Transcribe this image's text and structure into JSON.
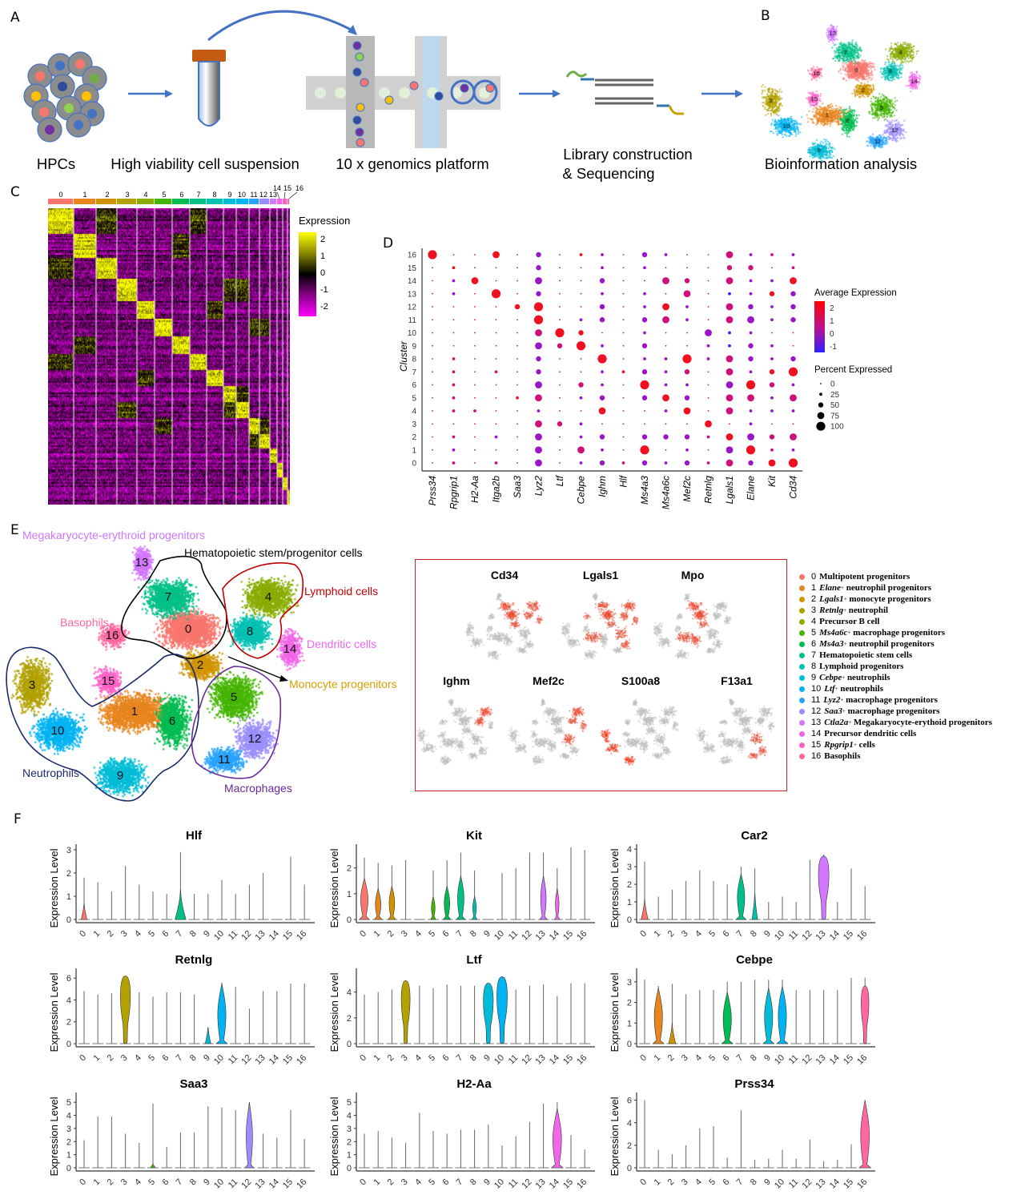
{
  "panel_labels": {
    "A": "A",
    "B": "B",
    "C": "C",
    "D": "D",
    "E": "E",
    "F": "F"
  },
  "panelA": {
    "steps": [
      "HPCs",
      "High viability cell suspension",
      "10 x genomics platform",
      "Library construction",
      "& Sequencing",
      "Bioinformation analysis"
    ]
  },
  "clusters": [
    "0",
    "1",
    "2",
    "3",
    "4",
    "5",
    "6",
    "7",
    "8",
    "9",
    "10",
    "11",
    "12",
    "13",
    "14",
    "15",
    "16"
  ],
  "cluster_colors": [
    "#F8766D",
    "#E7851E",
    "#D09400",
    "#B2A100",
    "#89AC00",
    "#45B500",
    "#00BC51",
    "#00C087",
    "#00C0B2",
    "#00BCD6",
    "#00B3F2",
    "#29A3FF",
    "#9C8DFF",
    "#D277FF",
    "#F166E8",
    "#FF61C7",
    "#FF689E"
  ],
  "heatmap": {
    "legend_title": "Expression",
    "legend_ticks": [
      "2",
      "1",
      "0",
      "-1",
      "-2"
    ],
    "colors": {
      "low": "#FF00FF",
      "mid": "#000000",
      "high": "#FFFF00"
    }
  },
  "dotplot": {
    "ylabel": "Cluster",
    "genes": [
      "Prss34",
      "Rpgrip1",
      "H2-Aa",
      "Itga2b",
      "Saa3",
      "Lyz2",
      "Ltf",
      "Cebpe",
      "Ighm",
      "Hlf",
      "Ms4a3",
      "Ms4a6c",
      "Mef2c",
      "Retnlg",
      "Lgals1",
      "Elane",
      "Kit",
      "Cd34"
    ],
    "rows_top_to_bottom": [
      "16",
      "15",
      "14",
      "13",
      "12",
      "11",
      "10",
      "9",
      "8",
      "7",
      "6",
      "5",
      "4",
      "3",
      "2",
      "1",
      "0"
    ],
    "dots_note": "size class 0-4 (percent expressed) + color class r/m/p/b (average expression high to low)",
    "dots": [
      [
        "4r",
        "0r",
        "0m",
        "3r",
        "0m",
        "2p",
        "0m",
        "1r",
        "1p",
        "0m",
        "2p",
        "1p",
        "0m",
        "0m",
        "3m",
        "1p",
        "1m",
        "1p"
      ],
      [
        "0m",
        "1r",
        "0m",
        "0m",
        "0m",
        "2p",
        "0m",
        "0m",
        "1p",
        "0m",
        "1p",
        "0m",
        "0m",
        "0m",
        "2m",
        "2m",
        "0m",
        "1m"
      ],
      [
        "0m",
        "1p",
        "3r",
        "0m",
        "0m",
        "3p",
        "0m",
        "0m",
        "2p",
        "0m",
        "0m",
        "3m",
        "2m",
        "0m",
        "3m",
        "1p",
        "1p",
        "3r"
      ],
      [
        "0m",
        "1p",
        "0m",
        "4r",
        "0m",
        "2p",
        "0m",
        "0m",
        "1p",
        "0m",
        "1p",
        "0m",
        "3m",
        "0m",
        "1b",
        "1p",
        "2r",
        "2p"
      ],
      [
        "0m",
        "0m",
        "0m",
        "0m",
        "2r",
        "4r",
        "0m",
        "0m",
        "2p",
        "0m",
        "1p",
        "3r",
        "1p",
        "0m",
        "3m",
        "2p",
        "1p",
        "2p"
      ],
      [
        "0m",
        "0m",
        "0m",
        "0m",
        "0m",
        "4r",
        "0m",
        "1p",
        "2p",
        "0m",
        "2p",
        "3m",
        "1p",
        "0m",
        "3m",
        "3p",
        "1p",
        "2p"
      ],
      [
        "0m",
        "0m",
        "0m",
        "0m",
        "0m",
        "3m",
        "4r",
        "2r",
        "0m",
        "0m",
        "1p",
        "0m",
        "0m",
        "3p",
        "1b",
        "1p",
        "0m",
        "0m"
      ],
      [
        "0m",
        "0m",
        "0m",
        "0m",
        "0m",
        "3p",
        "2m",
        "4r",
        "1p",
        "0m",
        "2p",
        "0m",
        "0m",
        "1p",
        "1b",
        "2p",
        "1p",
        "0m"
      ],
      [
        "0m",
        "1m",
        "0m",
        "0m",
        "0m",
        "2p",
        "0m",
        "0m",
        "4r",
        "0m",
        "1p",
        "1p",
        "4r",
        "1p",
        "3m",
        "2p",
        "1p",
        "2p"
      ],
      [
        "0m",
        "1m",
        "0m",
        "1m",
        "0m",
        "2p",
        "0m",
        "0m",
        "1p",
        "1r",
        "2p",
        "1p",
        "2m",
        "0m",
        "3m",
        "1p",
        "2r",
        "4r"
      ],
      [
        "0m",
        "1m",
        "0m",
        "0m",
        "0m",
        "3p",
        "0m",
        "2m",
        "1p",
        "0m",
        "4r",
        "1p",
        "1p",
        "0m",
        "3p",
        "4r",
        "2m",
        "1p"
      ],
      [
        "0m",
        "1m",
        "0m",
        "0m",
        "1r",
        "3m",
        "0m",
        "1p",
        "2p",
        "0m",
        "2p",
        "3r",
        "2p",
        "0m",
        "3m",
        "3m",
        "1p",
        "3m"
      ],
      [
        "0m",
        "1m",
        "1m",
        "0m",
        "0m",
        "1p",
        "0m",
        "0m",
        "3r",
        "0m",
        "0m",
        "1p",
        "3r",
        "0m",
        "3m",
        "1p",
        "1p",
        "1p"
      ],
      [
        "0m",
        "0m",
        "0m",
        "0m",
        "0m",
        "3m",
        "2m",
        "1p",
        "0m",
        "0m",
        "0m",
        "0m",
        "0m",
        "3r",
        "0m",
        "1p",
        "0m",
        "0m"
      ],
      [
        "0m",
        "1m",
        "0m",
        "1p",
        "0m",
        "3p",
        "0m",
        "1p",
        "2p",
        "0m",
        "2p",
        "2p",
        "2p",
        "1m",
        "3r",
        "3p",
        "2m",
        "3m"
      ],
      [
        "0m",
        "1p",
        "0m",
        "0m",
        "0m",
        "3p",
        "0m",
        "3m",
        "1p",
        "0m",
        "4r",
        "0m",
        "1p",
        "0m",
        "3p",
        "4r",
        "1m",
        "1p"
      ],
      [
        "0m",
        "1m",
        "0m",
        "1m",
        "0m",
        "3p",
        "0m",
        "1p",
        "2p",
        "1m",
        "2p",
        "1p",
        "2p",
        "1m",
        "3m",
        "2p",
        "3r",
        "4r"
      ]
    ],
    "color_classes": {
      "r": "#F01020",
      "m": "#D0107A",
      "p": "#9A14C8",
      "b": "#3020FF"
    },
    "avg_legend": {
      "title": "Average Expression",
      "ticks": [
        "2",
        "1",
        "0",
        "-1"
      ]
    },
    "pct_legend": {
      "title": "Percent Expressed",
      "ticks": [
        "0",
        "25",
        "50",
        "75",
        "100"
      ]
    }
  },
  "panelE": {
    "annotations": [
      {
        "text": "Megakaryocyte-erythroid progenitors",
        "color": "#CC77FF"
      },
      {
        "text": "Hematopoietic stem/progenitor cells",
        "color": "#000000"
      },
      {
        "text": "Lymphoid cells",
        "color": "#CC0000"
      },
      {
        "text": "Basophils",
        "color": "#FF6699"
      },
      {
        "text": "Dendritic cells",
        "color": "#EE66EE"
      },
      {
        "text": "Monocyte progenitors",
        "color": "#D4A000"
      },
      {
        "text": "Neutrophils",
        "color": "#1A2A6C"
      },
      {
        "text": "Macrophages",
        "color": "#6A2A9A"
      }
    ],
    "feature_plots": [
      "Cd34",
      "Lgals1",
      "Mpo",
      "Ighm",
      "Mef2c",
      "S100a8",
      "F13a1"
    ],
    "legend": [
      {
        "num": "0",
        "gene": "",
        "plus": false,
        "rest": "Multipotent progenitors"
      },
      {
        "num": "1",
        "gene": "Elane",
        "plus": true,
        "rest": "neutrophil progenitors"
      },
      {
        "num": "2",
        "gene": "Lgals1",
        "plus": true,
        "rest": "monocyte progenitors"
      },
      {
        "num": "3",
        "gene": "Retnlg",
        "plus": true,
        "rest": "neutrophil"
      },
      {
        "num": "4",
        "gene": "",
        "plus": false,
        "rest": "Precursor B cell"
      },
      {
        "num": "5",
        "gene": "Ms4a6c",
        "plus": true,
        "rest": "macrophage progenitors"
      },
      {
        "num": "6",
        "gene": "Ms4a3",
        "plus": true,
        "rest": "neutrophil progenitors"
      },
      {
        "num": "7",
        "gene": "",
        "plus": false,
        "rest": "Hematopoietic stem cells"
      },
      {
        "num": "8",
        "gene": "",
        "plus": false,
        "rest": "Lymphoid progenitors"
      },
      {
        "num": "9",
        "gene": "Cebpe",
        "plus": true,
        "rest": "neutrophils"
      },
      {
        "num": "10",
        "gene": "Ltf",
        "plus": true,
        "rest": "neutrophils"
      },
      {
        "num": "11",
        "gene": "Lyz2",
        "plus": true,
        "rest": "macrophage progenitors"
      },
      {
        "num": "12",
        "gene": "Saa3",
        "plus": true,
        "rest": "macrophage progenitors"
      },
      {
        "num": "13",
        "gene": "Ctla2a",
        "plus": true,
        "rest": "Megakaryocyte-erythoid progenitors"
      },
      {
        "num": "14",
        "gene": "",
        "plus": false,
        "rest": "Precursor dendritic cells"
      },
      {
        "num": "15",
        "gene": "Rpgrip1",
        "plus": true,
        "rest": "cells"
      },
      {
        "num": "16",
        "gene": "",
        "plus": false,
        "rest": "Basophils"
      }
    ]
  },
  "panelF": {
    "ylabel": "Expression Level",
    "violins": [
      {
        "gene": "Hlf",
        "ymax": 3.1,
        "ticks": [
          0,
          1,
          2,
          3
        ],
        "maxes": [
          1.8,
          1.6,
          1.2,
          2.3,
          1.5,
          1.2,
          1.1,
          2.9,
          1.1,
          1.1,
          1.7,
          1.1,
          1.5,
          2.0,
          0,
          2.7,
          1.5
        ],
        "shapes": [
          [
            0,
            0.7,
            0.4,
            "bottom"
          ],
          [
            7,
            1.3,
            0.8,
            "bottom"
          ]
        ]
      },
      {
        "gene": "Kit",
        "ymax": 2.8,
        "ticks": [
          0,
          1,
          2
        ],
        "maxes": [
          2.4,
          2.2,
          2.1,
          2.3,
          0,
          1.9,
          2.3,
          2.6,
          1.9,
          0,
          1.8,
          2.0,
          2.6,
          2.6,
          2.0,
          2.8,
          2.7
        ],
        "shapes": [
          [
            0,
            1.6,
            0.8,
            "mid"
          ],
          [
            1,
            1.2,
            0.6,
            "mid"
          ],
          [
            2,
            1.3,
            0.6,
            "mid"
          ],
          [
            5,
            0.9,
            0.4,
            "mid"
          ],
          [
            6,
            1.3,
            0.6,
            "mid"
          ],
          [
            7,
            1.7,
            0.7,
            "mid"
          ],
          [
            8,
            0.9,
            0.4,
            "mid"
          ],
          [
            13,
            1.7,
            0.6,
            "mid"
          ],
          [
            14,
            1.2,
            0.4,
            "mid"
          ]
        ]
      },
      {
        "gene": "Car2",
        "ymax": 4.1,
        "ticks": [
          0,
          1,
          2,
          3,
          4
        ],
        "maxes": [
          3.3,
          1.3,
          1.7,
          2.2,
          2.8,
          2.2,
          2.0,
          3.0,
          2.9,
          1.0,
          1.3,
          1.0,
          3.4,
          3.7,
          1.0,
          2.9,
          1.9
        ],
        "shapes": [
          [
            0,
            1.2,
            0.5,
            "bottom"
          ],
          [
            7,
            2.6,
            0.8,
            "mid"
          ],
          [
            8,
            1.5,
            0.4,
            "bottom"
          ],
          [
            13,
            3.6,
            0.95,
            "top"
          ]
        ]
      },
      {
        "gene": "Retnlg",
        "ymax": 6.6,
        "ticks": [
          0,
          2,
          4,
          6
        ],
        "maxes": [
          4.8,
          4.5,
          4.6,
          6.2,
          4.7,
          4.3,
          4.7,
          4.7,
          4.5,
          1.5,
          5.6,
          5.2,
          3.2,
          4.8,
          4.8,
          5.5,
          5.5
        ],
        "shapes": [
          [
            3,
            6.2,
            0.9,
            "top"
          ],
          [
            9,
            1.5,
            0.4,
            "bottom"
          ],
          [
            10,
            5.5,
            0.9,
            "mid"
          ]
        ]
      },
      {
        "gene": "Ltf",
        "ymax": 5.6,
        "ticks": [
          0,
          2,
          4
        ],
        "maxes": [
          3.8,
          4.0,
          4.2,
          4.9,
          4.5,
          4.3,
          4.6,
          4.5,
          4.5,
          4.7,
          5.2,
          4.2,
          4.5,
          4.6,
          3.7,
          4.7,
          4.7
        ],
        "shapes": [
          [
            3,
            4.9,
            0.8,
            "top"
          ],
          [
            9,
            4.7,
            0.9,
            "top"
          ],
          [
            10,
            5.2,
            0.95,
            "top"
          ]
        ]
      },
      {
        "gene": "Cebpe",
        "ymax": 3.5,
        "ticks": [
          0,
          1,
          2,
          3
        ],
        "maxes": [
          3.1,
          2.8,
          2.9,
          2.4,
          2.6,
          2.6,
          3.0,
          3.0,
          3.1,
          3.1,
          3.1,
          2.6,
          2.6,
          2.6,
          2.6,
          3.2,
          3.2
        ],
        "shapes": [
          [
            1,
            2.7,
            0.9,
            "mid"
          ],
          [
            2,
            1.0,
            0.5,
            "bottom"
          ],
          [
            6,
            2.5,
            0.9,
            "mid"
          ],
          [
            9,
            2.7,
            0.9,
            "mid"
          ],
          [
            10,
            2.8,
            0.9,
            "mid"
          ],
          [
            16,
            2.8,
            0.7,
            "top"
          ]
        ]
      },
      {
        "gene": "Saa3",
        "ymax": 5.5,
        "ticks": [
          0,
          1,
          2,
          3,
          4,
          5
        ],
        "maxes": [
          2.1,
          3.9,
          3.9,
          2.6,
          1.9,
          4.9,
          1.6,
          2.7,
          2.7,
          4.7,
          4.6,
          4.4,
          5.0,
          2.6,
          2.3,
          4.4,
          2.2
        ],
        "shapes": [
          [
            5,
            0.3,
            0.3,
            "bottom"
          ],
          [
            12,
            5.0,
            0.7,
            "mid"
          ]
        ]
      },
      {
        "gene": "H2-Aa",
        "ymax": 5.5,
        "ticks": [
          0,
          1,
          2,
          3,
          4,
          5
        ],
        "maxes": [
          2.6,
          2.8,
          2.3,
          1.9,
          4.2,
          2.8,
          2.6,
          2.9,
          2.9,
          3.3,
          1.7,
          2.4,
          3.5,
          4.9,
          5.0,
          2.5,
          1.4
        ],
        "shapes": [
          [
            14,
            4.5,
            0.95,
            "mid"
          ]
        ]
      },
      {
        "gene": "Prss34",
        "ymax": 6.4,
        "ticks": [
          0,
          2,
          4,
          6
        ],
        "maxes": [
          6.0,
          1.6,
          1.2,
          2.0,
          3.5,
          3.7,
          0.9,
          5.1,
          0.7,
          0.8,
          1.6,
          0.8,
          2.5,
          0.6,
          0.7,
          2.1,
          6.0
        ],
        "shapes": [
          [
            16,
            6.0,
            0.95,
            "mid"
          ]
        ]
      }
    ]
  }
}
